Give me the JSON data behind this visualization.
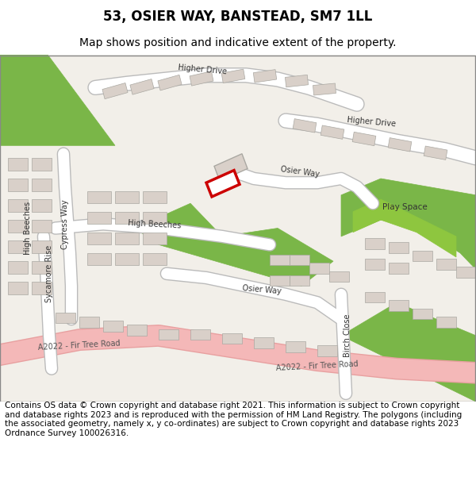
{
  "title": "53, OSIER WAY, BANSTEAD, SM7 1LL",
  "subtitle": "Map shows position and indicative extent of the property.",
  "footer": "Contains OS data © Crown copyright and database right 2021. This information is subject to Crown copyright and database rights 2023 and is reproduced with the permission of HM Land Registry. The polygons (including the associated geometry, namely x, y co-ordinates) are subject to Crown copyright and database rights 2023 Ordnance Survey 100026316.",
  "map_bg": "#f2efe9",
  "road_color": "#ffffff",
  "road_outline": "#bbbbbb",
  "a_road_color": "#f4b8b8",
  "a_road_outline": "#e8a0a0",
  "green_color": "#7ab648",
  "green_color2": "#8ec63f",
  "building_color": "#d9d0c9",
  "building_edge": "#aaa8a2",
  "highlight_color": "#cc0000",
  "title_fontsize": 12,
  "subtitle_fontsize": 10,
  "footer_fontsize": 7.5,
  "border_color": "#888888",
  "title_color": "#000000",
  "footer_color": "#000000",
  "label_color": "#333333",
  "a_label_color": "#555555",
  "label_fontsize": 7
}
